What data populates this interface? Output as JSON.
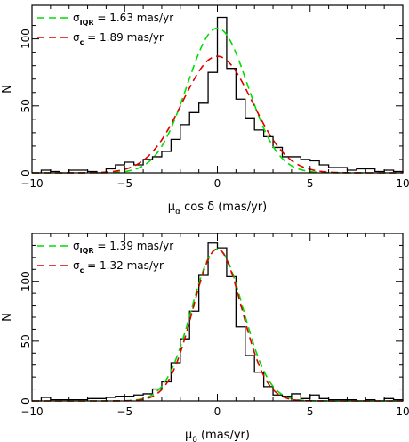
{
  "chart_data": [
    {
      "type": "line",
      "xlabel": "μα cos δ (mas/yr)",
      "ylabel": "N",
      "xlim": [
        -10,
        10
      ],
      "ylim": [
        0,
        125
      ],
      "xticks": [
        -10,
        -5,
        0,
        5,
        10
      ],
      "yticks": [
        0,
        50,
        100
      ],
      "grid": false,
      "legend_position": "top-left",
      "histogram": {
        "name": "",
        "color": "#000000",
        "bin_edges": [
          -10,
          -9.5,
          -9,
          -8.5,
          -8,
          -7.5,
          -7,
          -6.5,
          -6,
          -5.5,
          -5,
          -4.5,
          -4,
          -3.5,
          -3,
          -2.5,
          -2,
          -1.5,
          -1,
          -0.5,
          0,
          0.5,
          1,
          1.5,
          2,
          2.5,
          3,
          3.5,
          4,
          4.5,
          5,
          5.5,
          6,
          6.5,
          7,
          7.5,
          8,
          8.5,
          9,
          9.5,
          10
        ],
        "counts": [
          0,
          2,
          1,
          0,
          2,
          2,
          1,
          0,
          3,
          6,
          8,
          6,
          10,
          12,
          16,
          25,
          36,
          45,
          52,
          75,
          116,
          78,
          55,
          41,
          32,
          27,
          19,
          12,
          12,
          10,
          9,
          6,
          4,
          4,
          2,
          3,
          3,
          1,
          2,
          1
        ]
      },
      "series": [
        {
          "name_sigma": "σ",
          "name_sub": "IQR",
          "name_value": "= 1.63 mas/yr",
          "color": "#00dd00",
          "dash": "8,5",
          "mu": 0,
          "sigma": 1.63,
          "amplitude": 108
        },
        {
          "name_sigma": "σ",
          "name_sub": "c",
          "name_value": "= 1.89 mas/yr",
          "color": "#dd0000",
          "dash": "8,5",
          "mu": 0,
          "sigma": 1.89,
          "amplitude": 87
        }
      ]
    },
    {
      "type": "line",
      "xlabel": "μδ (mas/yr)",
      "ylabel": "N",
      "xlim": [
        -10,
        10
      ],
      "ylim": [
        0,
        140
      ],
      "xticks": [
        -10,
        -5,
        0,
        5,
        10
      ],
      "yticks": [
        0,
        50,
        100
      ],
      "grid": false,
      "legend_position": "top-left",
      "histogram": {
        "name": "",
        "color": "#000000",
        "bin_edges": [
          -10,
          -9.5,
          -9,
          -8.5,
          -8,
          -7.5,
          -7,
          -6.5,
          -6,
          -5.5,
          -5,
          -4.5,
          -4,
          -3.5,
          -3,
          -2.5,
          -2,
          -1.5,
          -1,
          -0.5,
          0,
          0.5,
          1,
          1.5,
          2,
          2.5,
          3,
          3.5,
          4,
          4.5,
          5,
          5.5,
          6,
          6.5,
          7,
          7.5,
          8,
          8.5,
          9,
          9.5,
          10
        ],
        "counts": [
          0,
          3,
          1,
          1,
          1,
          1,
          2,
          2,
          3,
          4,
          4,
          5,
          6,
          10,
          16,
          32,
          52,
          75,
          105,
          132,
          128,
          104,
          62,
          38,
          24,
          12,
          5,
          4,
          6,
          2,
          5,
          2,
          1,
          1,
          1,
          0,
          1,
          0,
          2,
          1
        ]
      },
      "series": [
        {
          "name_sigma": "σ",
          "name_sub": "IQR",
          "name_value": "= 1.39 mas/yr",
          "color": "#00dd00",
          "dash": "8,5",
          "mu": 0,
          "sigma": 1.39,
          "amplitude": 127
        },
        {
          "name_sigma": "σ",
          "name_sub": "c",
          "name_value": "= 1.32 mas/yr",
          "color": "#dd0000",
          "dash": "8,5",
          "mu": 0,
          "sigma": 1.32,
          "amplitude": 127
        }
      ]
    }
  ],
  "panels": [
    {
      "xlabel_main": "μ",
      "xlabel_sub": "α",
      "xlabel_rest": " cos δ (mas/yr)"
    },
    {
      "xlabel_main": "μ",
      "xlabel_sub": "δ",
      "xlabel_rest": " (mas/yr)"
    }
  ]
}
